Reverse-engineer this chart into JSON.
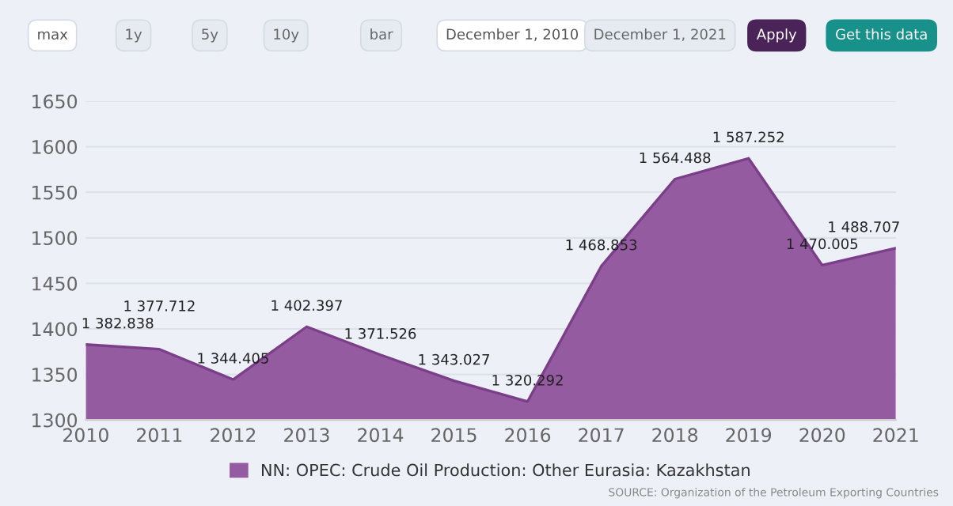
{
  "chart_data": {
    "type": "area",
    "x": [
      2010,
      2011,
      2012,
      2013,
      2014,
      2015,
      2016,
      2017,
      2018,
      2019,
      2020,
      2021
    ],
    "series": [
      {
        "name": "NN: OPEC: Crude Oil Production: Other Eurasia: Kazakhstan",
        "color": "#955ba0",
        "values": [
          1382.838,
          1377.712,
          1344.405,
          1402.397,
          1371.526,
          1343.027,
          1320.292,
          1468.853,
          1564.488,
          1587.252,
          1470.005,
          1488.707
        ]
      }
    ],
    "xlim": [
      2010,
      2021
    ],
    "xticks": [
      2010,
      2011,
      2012,
      2013,
      2014,
      2015,
      2016,
      2017,
      2018,
      2019,
      2020,
      2021
    ],
    "ylim": [
      1300,
      1650
    ],
    "yticks": [
      1300,
      1350,
      1400,
      1450,
      1500,
      1550,
      1600,
      1650
    ],
    "grid": "y",
    "legend": "bottom",
    "data_labels": true,
    "annotations": [
      "max",
      "1y",
      "5y",
      "10y",
      "bar",
      "December 1, 2010",
      "December 1, 2021",
      "Apply",
      "Get this data",
      "SOURCE: Organization of the Petroleum Exporting Countries"
    ]
  }
}
